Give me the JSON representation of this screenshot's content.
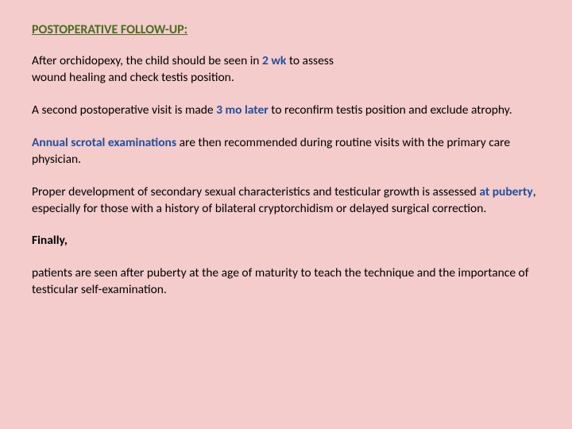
{
  "colors": {
    "background": "#f4cccc",
    "heading": "#4a6c1f",
    "body_text": "#000000",
    "highlight": "#1f4e9c"
  },
  "typography": {
    "font_family": "Calibri, Arial, sans-serif",
    "heading_fontsize": 16,
    "body_fontsize": 15.5,
    "line_height": 1.35
  },
  "heading": "POSTOPERATIVE FOLLOW-UP:",
  "p1a": " After orchidopexy, the child should be seen in ",
  "p1b": "2 wk",
  "p1c": " to assess",
  "p1d": "wound healing and check testis position.",
  "p2a": " A second postoperative visit is made ",
  "p2b": "3 mo later",
  "p2c": " to reconfirm testis position and exclude atrophy.",
  "p3a": "Annual scrotal examinations",
  "p3b": " are then recommended during routine visits with the primary care physician.",
  "p4a": " Proper development of secondary sexual characteristics and testicular growth is assessed ",
  "p4b": "at puberty",
  "p4c": ", especially for those with a history of bilateral cryptorchidism or delayed surgical correction.",
  "p5": "Finally,",
  "p6": " patients are seen after puberty at the age of maturity to teach the technique and the importance of testicular self-examination."
}
